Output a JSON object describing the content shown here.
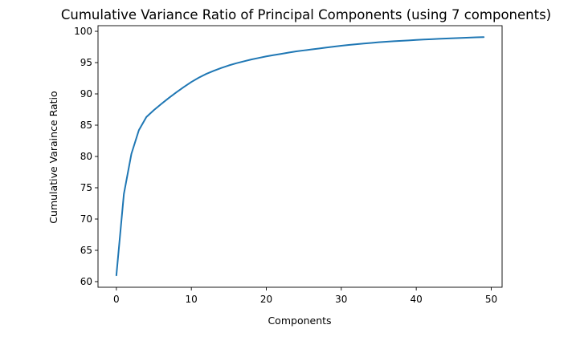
{
  "chart_data": {
    "type": "line",
    "title": "Cumulative Variance Ratio of Principal Components (using 7 components)",
    "xlabel": "Components",
    "ylabel": "Cumulative Varaince Ratio",
    "xlim": [
      -2.45,
      51.45
    ],
    "ylim": [
      59.1,
      100.9
    ],
    "xticks": [
      0,
      10,
      20,
      30,
      40,
      50
    ],
    "yticks": [
      60,
      65,
      70,
      75,
      80,
      85,
      90,
      95,
      100
    ],
    "grid": false,
    "legend": "none",
    "color": "#1f77b4",
    "series": [
      {
        "x": [
          0,
          1,
          2,
          3,
          4,
          5,
          6,
          7,
          8,
          9,
          10,
          11,
          12,
          13,
          14,
          15,
          16,
          17,
          18,
          19,
          20,
          21,
          22,
          23,
          24,
          25,
          26,
          27,
          28,
          29,
          30,
          31,
          32,
          33,
          34,
          35,
          36,
          37,
          38,
          39,
          40,
          41,
          42,
          43,
          44,
          45,
          46,
          47,
          48,
          49
        ],
        "values": [
          61.0,
          74.0,
          80.4,
          84.2,
          86.3,
          87.4,
          88.4,
          89.35,
          90.25,
          91.1,
          91.9,
          92.6,
          93.2,
          93.7,
          94.15,
          94.55,
          94.9,
          95.2,
          95.5,
          95.75,
          96.0,
          96.2,
          96.4,
          96.6,
          96.8,
          96.95,
          97.1,
          97.25,
          97.4,
          97.55,
          97.7,
          97.82,
          97.94,
          98.05,
          98.15,
          98.25,
          98.33,
          98.41,
          98.48,
          98.55,
          98.62,
          98.68,
          98.74,
          98.8,
          98.85,
          98.9,
          98.95,
          99.0,
          99.04,
          99.08
        ]
      }
    ]
  }
}
